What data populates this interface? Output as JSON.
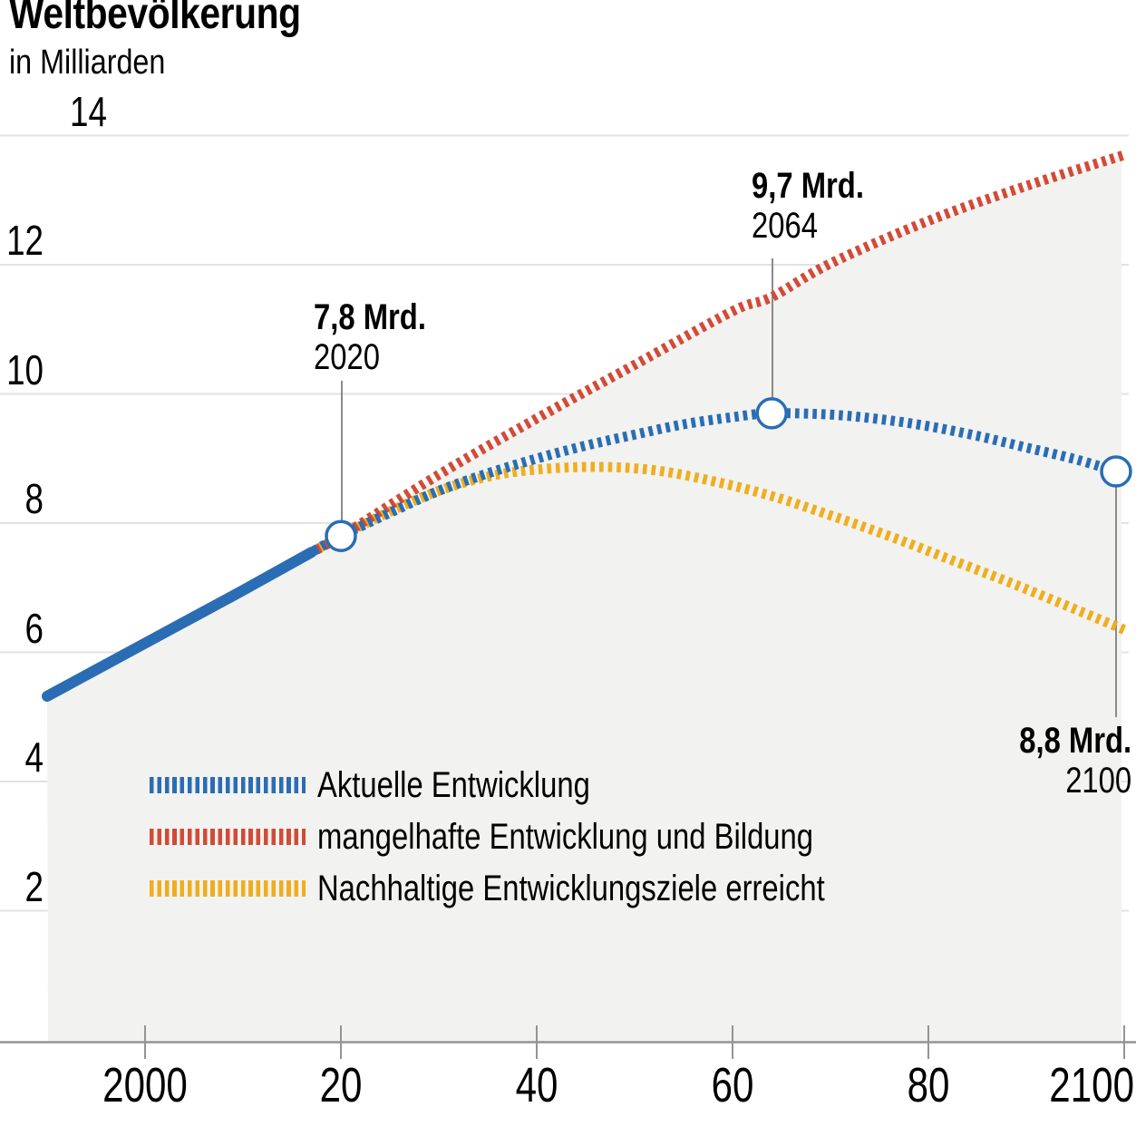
{
  "page": {
    "title": "Weltbevölkerung",
    "subtitle": "in Milliarden"
  },
  "colors": {
    "blue": "#2a6db4",
    "red": "#d14b38",
    "yellow": "#efae1e",
    "fill": "#f2f2f0",
    "grid": "#e2e2e2",
    "axis": "#949494",
    "tick": "#949494",
    "connector": "#8a8a8a",
    "marker_fill": "#ffffff",
    "text": "#000000"
  },
  "chart_data": {
    "type": "line",
    "title": "Weltbevölkerung",
    "ylabel": "in Milliarden",
    "xlabel": "",
    "xlim": [
      1989,
      2101
    ],
    "ylim": [
      0,
      14.1
    ],
    "grid": "horizontal",
    "legend_position": "inside-bottom-left",
    "y_ticks": [
      {
        "value": 14,
        "label": "14"
      },
      {
        "value": 12,
        "label": "12"
      },
      {
        "value": 10,
        "label": "10"
      },
      {
        "value": 8,
        "label": "8"
      },
      {
        "value": 6,
        "label": "6"
      },
      {
        "value": 4,
        "label": "4"
      },
      {
        "value": 2,
        "label": "2"
      }
    ],
    "x_ticks": [
      {
        "year": 2000,
        "label": "2000"
      },
      {
        "year": 2020,
        "label": "20"
      },
      {
        "year": 2040,
        "label": "40"
      },
      {
        "year": 2060,
        "label": "60"
      },
      {
        "year": 2080,
        "label": "80"
      },
      {
        "year": 2100,
        "label": "2100"
      }
    ],
    "series": [
      {
        "id": "history",
        "name": "Weltbevölkerung (historisch)",
        "style": "solid",
        "color_key": "blue",
        "points": [
          [
            1990,
            5.32
          ],
          [
            1995,
            5.73
          ],
          [
            2000,
            6.14
          ],
          [
            2005,
            6.55
          ],
          [
            2010,
            6.96
          ],
          [
            2017,
            7.55
          ]
        ]
      },
      {
        "id": "aktuell",
        "name": "Aktuelle Entwicklung",
        "style": "dotted",
        "color_key": "blue",
        "points": [
          [
            2017,
            7.55
          ],
          [
            2020,
            7.8
          ],
          [
            2025,
            8.16
          ],
          [
            2030,
            8.5
          ],
          [
            2035,
            8.77
          ],
          [
            2040,
            9.0
          ],
          [
            2045,
            9.2
          ],
          [
            2050,
            9.37
          ],
          [
            2055,
            9.53
          ],
          [
            2060,
            9.64
          ],
          [
            2064,
            9.7
          ],
          [
            2070,
            9.68
          ],
          [
            2075,
            9.61
          ],
          [
            2080,
            9.5
          ],
          [
            2085,
            9.35
          ],
          [
            2090,
            9.17
          ],
          [
            2095,
            8.99
          ],
          [
            2100,
            8.8
          ]
        ]
      },
      {
        "id": "mangelhaft",
        "name": "mangelhafte Entwicklung und Bildung",
        "style": "dotted",
        "color_key": "red",
        "points": [
          [
            2017,
            7.55
          ],
          [
            2020,
            7.8
          ],
          [
            2030,
            8.75
          ],
          [
            2040,
            9.62
          ],
          [
            2050,
            10.45
          ],
          [
            2060,
            11.28
          ],
          [
            2064,
            11.5
          ],
          [
            2070,
            12.02
          ],
          [
            2080,
            12.68
          ],
          [
            2090,
            13.22
          ],
          [
            2100,
            13.7
          ]
        ]
      },
      {
        "id": "nachhaltig",
        "name": "Nachhaltige Entwicklungsziele erreicht",
        "style": "dotted",
        "color_key": "yellow",
        "points": [
          [
            2017,
            7.55
          ],
          [
            2020,
            7.8
          ],
          [
            2025,
            8.18
          ],
          [
            2030,
            8.5
          ],
          [
            2035,
            8.72
          ],
          [
            2040,
            8.83
          ],
          [
            2046,
            8.87
          ],
          [
            2052,
            8.82
          ],
          [
            2058,
            8.65
          ],
          [
            2064,
            8.42
          ],
          [
            2070,
            8.12
          ],
          [
            2076,
            7.8
          ],
          [
            2082,
            7.45
          ],
          [
            2088,
            7.1
          ],
          [
            2094,
            6.73
          ],
          [
            2100,
            6.35
          ]
        ]
      }
    ],
    "area_fill": {
      "under_series": "mangelhaft",
      "color_key": "fill"
    },
    "annotations": [
      {
        "value_label": "7,8 Mrd.",
        "year_label": "2020",
        "year": 2020,
        "value": 7.8
      },
      {
        "value_label": "9,7 Mrd.",
        "year_label": "2064",
        "year": 2064,
        "value": 9.7
      },
      {
        "value_label": "8,8 Mrd.",
        "year_label": "2100",
        "year": 2100,
        "value": 8.8
      }
    ],
    "legend": [
      {
        "label": "Aktuelle Entwicklung",
        "color_key": "blue"
      },
      {
        "label": "mangelhafte Entwicklung und Bildung",
        "color_key": "red"
      },
      {
        "label": "Nachhaltige Entwicklungsziele erreicht",
        "color_key": "yellow"
      }
    ]
  }
}
